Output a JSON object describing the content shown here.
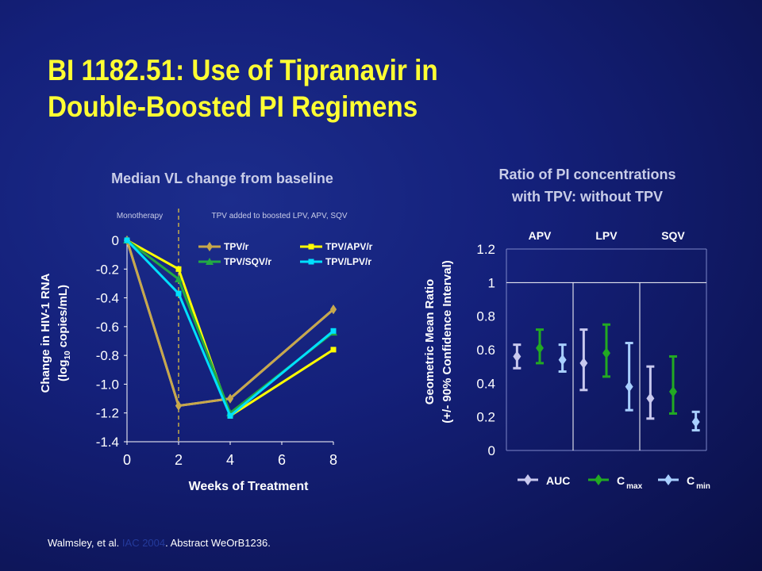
{
  "slide": {
    "title_line1": "BI 1182.51: Use of Tipranavir in",
    "title_line2": "Double-Boosted PI Regimens",
    "citation_prefix": "Walmsley, et al.",
    "citation_faded": "IAC 2004",
    "citation_suffix": ". Abstract WeOrB1236."
  },
  "chart_data": [
    {
      "type": "line",
      "title": "Median VL change from baseline",
      "phase_labels": [
        "Monotherapy",
        "TPV added to boosted LPV, APV, SQV"
      ],
      "phase_divider_x": 2,
      "xlabel": "Weeks of Treatment",
      "ylabel_line1": "Change in HIV-1 RNA",
      "ylabel_line2_pre": "(log",
      "ylabel_line2_sub": "10",
      "ylabel_line2_post": " copies/mL)",
      "x": [
        0,
        2,
        4,
        8
      ],
      "xlim": [
        0,
        8
      ],
      "ylim": [
        -1.4,
        0
      ],
      "x_ticks": [
        "0",
        "2",
        "4",
        "6",
        "8"
      ],
      "y_ticks": [
        "0",
        "-0.2",
        "-0.4",
        "-0.6",
        "-0.8",
        "-1.0",
        "-1.2",
        "-1.4"
      ],
      "series": [
        {
          "name": "TPV/r",
          "color": "#c8a84a",
          "marker": "diamond",
          "values": [
            0,
            -1.15,
            -1.1,
            -0.48
          ]
        },
        {
          "name": "TPV/APV/r",
          "color": "#ffff00",
          "marker": "square",
          "values": [
            0,
            -0.2,
            -1.22,
            -0.76
          ]
        },
        {
          "name": "TPV/SQV/r",
          "color": "#22aa44",
          "marker": "triangle",
          "values": [
            0,
            -0.27,
            -1.2,
            -0.64
          ]
        },
        {
          "name": "TPV/LPV/r",
          "color": "#00e0ff",
          "marker": "square",
          "values": [
            0,
            -0.37,
            -1.22,
            -0.63
          ]
        }
      ],
      "series_labels_unnamed": [
        {
          "color": "#b8bcf0",
          "marker": "diamond",
          "values": [
            0,
            -1.15,
            -1.1,
            -0.48
          ]
        }
      ]
    },
    {
      "type": "errorbar",
      "title_line1": "Ratio of PI concentrations",
      "title_line2": "with TPV: without TPV",
      "ylabel_line1": "Geometric Mean Ratio",
      "ylabel_line2": "(+/- 90% Confidence Interval)",
      "ylim": [
        0,
        1.2
      ],
      "y_ticks": [
        "0",
        "0.2",
        "0.4",
        "0.6",
        "0.8",
        "1",
        "1.2"
      ],
      "reference_line": 1,
      "groups": [
        "APV",
        "LPV",
        "SQV"
      ],
      "legend": [
        {
          "name": "AUC",
          "sub": "",
          "color": "#c8c8ee"
        },
        {
          "name": "C",
          "sub": "max",
          "color": "#22aa22"
        },
        {
          "name": "C",
          "sub": "min",
          "color": "#a8cfff"
        }
      ],
      "points": [
        {
          "group": "APV",
          "metric": "AUC",
          "value": 0.56,
          "low": 0.49,
          "high": 0.63
        },
        {
          "group": "APV",
          "metric": "Cmax",
          "value": 0.61,
          "low": 0.52,
          "high": 0.72
        },
        {
          "group": "APV",
          "metric": "Cmin",
          "value": 0.54,
          "low": 0.47,
          "high": 0.63
        },
        {
          "group": "LPV",
          "metric": "AUC",
          "value": 0.52,
          "low": 0.36,
          "high": 0.72
        },
        {
          "group": "LPV",
          "metric": "Cmax",
          "value": 0.58,
          "low": 0.44,
          "high": 0.75
        },
        {
          "group": "LPV",
          "metric": "Cmin",
          "value": 0.38,
          "low": 0.24,
          "high": 0.64
        },
        {
          "group": "SQV",
          "metric": "AUC",
          "value": 0.31,
          "low": 0.19,
          "high": 0.5
        },
        {
          "group": "SQV",
          "metric": "Cmax",
          "value": 0.35,
          "low": 0.22,
          "high": 0.56
        },
        {
          "group": "SQV",
          "metric": "Cmin",
          "value": 0.17,
          "low": 0.12,
          "high": 0.23
        }
      ],
      "colors": {
        "AUC": "#c8c8ee",
        "Cmax": "#22aa22",
        "Cmin": "#a8cfff"
      }
    }
  ]
}
